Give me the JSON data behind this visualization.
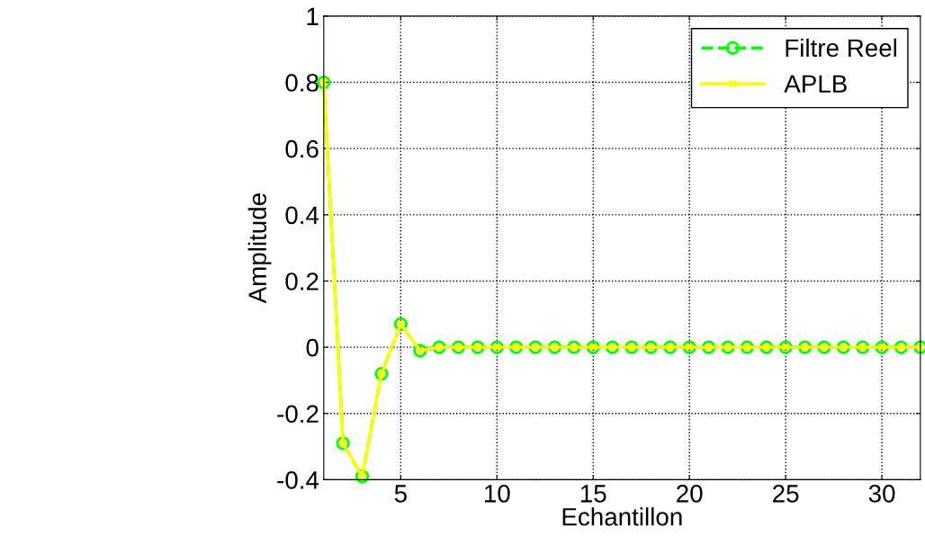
{
  "chart_data": {
    "type": "line",
    "xlabel": "Echantillon",
    "ylabel": "Amplitude",
    "x": [
      1,
      2,
      3,
      4,
      5,
      6,
      7,
      8,
      9,
      10,
      11,
      12,
      13,
      14,
      15,
      16,
      17,
      18,
      19,
      20,
      21,
      22,
      23,
      24,
      25,
      26,
      27,
      28,
      29,
      30,
      31,
      32
    ],
    "series": [
      {
        "name": "Filtre Reel",
        "color": "#00ff00",
        "marker": "circle",
        "line_style": "dashed",
        "values": [
          0.8,
          -0.29,
          -0.39,
          -0.08,
          0.07,
          -0.01,
          0,
          0,
          0,
          0,
          0,
          0,
          0,
          0,
          0,
          0,
          0,
          0,
          0,
          0,
          0,
          0,
          0,
          0,
          0,
          0,
          0,
          0,
          0,
          0,
          0,
          0
        ]
      },
      {
        "name": "APLB",
        "color": "#ffff00",
        "marker": "cross",
        "line_style": "solid",
        "values": [
          0.8,
          -0.29,
          -0.39,
          -0.08,
          0.07,
          -0.01,
          0,
          0,
          0,
          0,
          0,
          0,
          0,
          0,
          0,
          0,
          0,
          0,
          0,
          0,
          0,
          0,
          0,
          0,
          0,
          0,
          0,
          0,
          0,
          0,
          0,
          0
        ]
      }
    ],
    "xlim": [
      1,
      32
    ],
    "xticks": [
      5,
      10,
      15,
      20,
      25,
      30
    ],
    "ylim": [
      -0.4,
      1
    ],
    "yticks": [
      -0.4,
      -0.2,
      0,
      0.2,
      0.4,
      0.6,
      0.8,
      1
    ],
    "grid": true,
    "legend": "top right"
  }
}
